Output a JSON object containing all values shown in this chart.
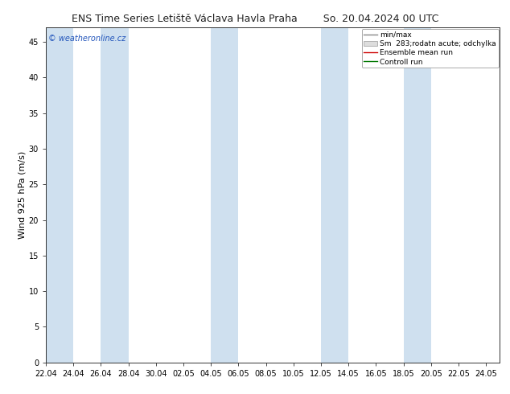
{
  "title_left": "ENS Time Series Letiště Václava Havla Praha",
  "title_right": "So. 20.04.2024 00 UTC",
  "ylabel": "Wind 925 hPa (m/s)",
  "watermark": "© weatheronline.cz",
  "ylim": [
    0,
    47
  ],
  "yticks": [
    0,
    5,
    10,
    15,
    20,
    25,
    30,
    35,
    40,
    45
  ],
  "xtick_labels": [
    "22.04",
    "24.04",
    "26.04",
    "28.04",
    "30.04",
    "02.05",
    "04.05",
    "06.05",
    "08.05",
    "10.05",
    "12.05",
    "14.05",
    "16.05",
    "18.05",
    "20.05",
    "22.05",
    "24.05"
  ],
  "band_color": "#cfe0ef",
  "background_color": "#ffffff",
  "legend_entries": [
    "min/max",
    "Sm  283;rodatn acute; odchylka",
    "Ensemble mean run",
    "Controll run"
  ],
  "ensemble_mean_color": "#cc0000",
  "control_run_color": "#007700",
  "minmax_color": "#888888",
  "spread_color": "#cccccc",
  "watermark_color": "#2255bb",
  "title_fontsize": 9,
  "tick_fontsize": 7,
  "ylabel_fontsize": 8,
  "n_days": 33
}
